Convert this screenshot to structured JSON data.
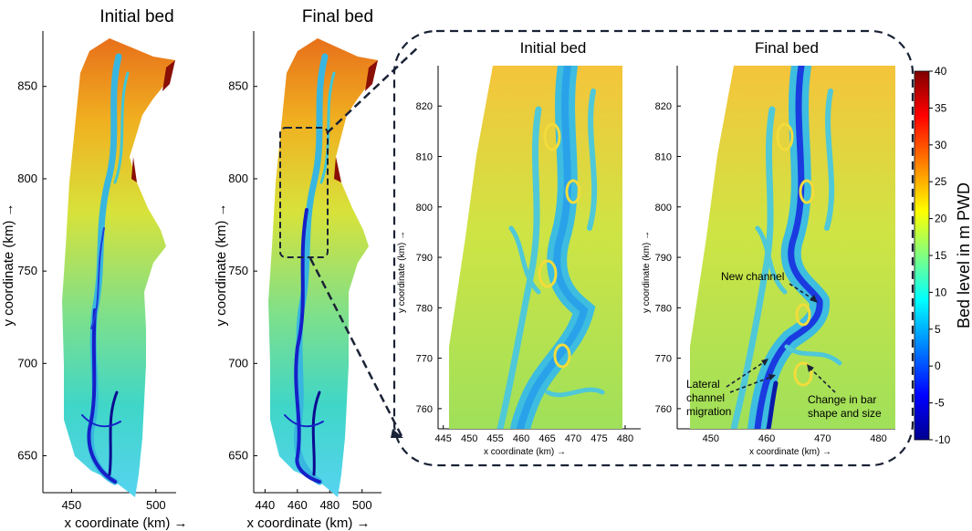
{
  "chart_data": [
    {
      "type": "heatmap",
      "title": "Initial bed",
      "xlabel": "x coordinate (km) →",
      "ylabel": "y coordinate (km) →",
      "xlim": [
        433,
        512
      ],
      "ylim": [
        630,
        880
      ],
      "x_ticks": [
        450,
        500
      ],
      "y_ticks": [
        650,
        700,
        750,
        800,
        850
      ]
    },
    {
      "type": "heatmap",
      "title": "Final bed",
      "xlabel": "x coordinate (km) →",
      "ylabel": "y coordinate (km) →",
      "xlim": [
        433,
        512
      ],
      "ylim": [
        630,
        880
      ],
      "x_ticks": [
        440,
        460,
        480,
        500
      ],
      "y_ticks": [
        650,
        700,
        750,
        800,
        850
      ]
    },
    {
      "type": "heatmap",
      "title": "Initial bed",
      "xlabel": "x coordinate (km) →",
      "ylabel": "y coordinate (km) →",
      "xlim": [
        444,
        483
      ],
      "ylim": [
        756,
        828
      ],
      "x_ticks": [
        445,
        450,
        455,
        460,
        465,
        470,
        475,
        480
      ],
      "y_ticks": [
        760,
        770,
        780,
        790,
        800,
        810,
        820
      ]
    },
    {
      "type": "heatmap",
      "title": "Final bed",
      "xlabel": "x coordinate (km) →",
      "ylabel": "y coordinate (km) →",
      "xlim": [
        444,
        483
      ],
      "ylim": [
        756,
        828
      ],
      "x_ticks": [
        450,
        460,
        470,
        480
      ],
      "y_ticks": [
        760,
        770,
        780,
        790,
        800,
        810,
        820
      ],
      "annotations": [
        "New channel",
        "Lateral",
        "channel",
        "migration",
        "Change in bar",
        "shape and size"
      ]
    }
  ],
  "colorbar": {
    "label": "Bed level in m PWD",
    "range": [
      -10,
      40
    ],
    "ticks": [
      40,
      35,
      30,
      25,
      20,
      15,
      10,
      5,
      0,
      -5,
      -10
    ],
    "colormap": [
      "#00008f",
      "#0000ff",
      "#0080ff",
      "#00ffff",
      "#80ff80",
      "#ffff00",
      "#ff8000",
      "#ff0000",
      "#800000"
    ]
  }
}
